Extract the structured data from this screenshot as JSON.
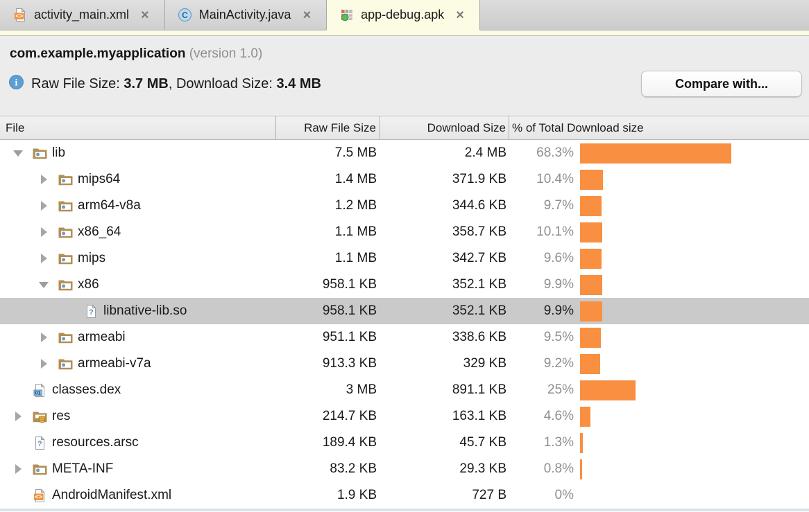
{
  "ui": {
    "close_glyph": "×"
  },
  "tabs": [
    {
      "label": "activity_main.xml",
      "icon": "xml-file-icon",
      "active": false
    },
    {
      "label": "MainActivity.java",
      "icon": "java-class-icon",
      "active": false
    },
    {
      "label": "app-debug.apk",
      "icon": "apk-icon",
      "active": true
    }
  ],
  "header": {
    "package_name": "com.example.myapplication",
    "version_label": "(version 1.0)",
    "info_prefix": "Raw File Size: ",
    "raw_size": "3.7 MB",
    "info_mid": ", Download Size: ",
    "download_size": "3.4 MB",
    "compare_button": "Compare with..."
  },
  "table": {
    "columns": [
      "File",
      "Raw File Size",
      "Download Size",
      "% of Total Download size"
    ],
    "bar_color": "#f98f40",
    "selected_row_color": "#cacaca",
    "rows": [
      {
        "name": "lib",
        "icon": "folder-icon",
        "indent": 0,
        "expander": "expanded",
        "raw": "7.5 MB",
        "download": "2.4 MB",
        "pct_label": "68.3%",
        "pct": 68.3,
        "selected": false
      },
      {
        "name": "mips64",
        "icon": "folder-icon",
        "indent": 1,
        "expander": "collapsed",
        "raw": "1.4 MB",
        "download": "371.9 KB",
        "pct_label": "10.4%",
        "pct": 10.4,
        "selected": false
      },
      {
        "name": "arm64-v8a",
        "icon": "folder-icon",
        "indent": 1,
        "expander": "collapsed",
        "raw": "1.2 MB",
        "download": "344.6 KB",
        "pct_label": "9.7%",
        "pct": 9.7,
        "selected": false
      },
      {
        "name": "x86_64",
        "icon": "folder-icon",
        "indent": 1,
        "expander": "collapsed",
        "raw": "1.1 MB",
        "download": "358.7 KB",
        "pct_label": "10.1%",
        "pct": 10.1,
        "selected": false
      },
      {
        "name": "mips",
        "icon": "folder-icon",
        "indent": 1,
        "expander": "collapsed",
        "raw": "1.1 MB",
        "download": "342.7 KB",
        "pct_label": "9.6%",
        "pct": 9.6,
        "selected": false
      },
      {
        "name": "x86",
        "icon": "folder-icon",
        "indent": 1,
        "expander": "expanded",
        "raw": "958.1 KB",
        "download": "352.1 KB",
        "pct_label": "9.9%",
        "pct": 9.9,
        "selected": false
      },
      {
        "name": "libnative-lib.so",
        "icon": "unknown-file-icon",
        "indent": 2,
        "expander": "none",
        "raw": "958.1 KB",
        "download": "352.1 KB",
        "pct_label": "9.9%",
        "pct": 9.9,
        "selected": true
      },
      {
        "name": "armeabi",
        "icon": "folder-icon",
        "indent": 1,
        "expander": "collapsed",
        "raw": "951.1 KB",
        "download": "338.6 KB",
        "pct_label": "9.5%",
        "pct": 9.5,
        "selected": false
      },
      {
        "name": "armeabi-v7a",
        "icon": "folder-icon",
        "indent": 1,
        "expander": "collapsed",
        "raw": "913.3 KB",
        "download": "329 KB",
        "pct_label": "9.2%",
        "pct": 9.2,
        "selected": false
      },
      {
        "name": "classes.dex",
        "icon": "dex-file-icon",
        "indent": 0,
        "expander": "none",
        "raw": "3 MB",
        "download": "891.1 KB",
        "pct_label": "25%",
        "pct": 25,
        "selected": false
      },
      {
        "name": "res",
        "icon": "res-folder-icon",
        "indent": 0,
        "expander": "collapsed",
        "raw": "214.7 KB",
        "download": "163.1 KB",
        "pct_label": "4.6%",
        "pct": 4.6,
        "selected": false
      },
      {
        "name": "resources.arsc",
        "icon": "unknown-file-icon",
        "indent": 0,
        "expander": "none",
        "raw": "189.4 KB",
        "download": "45.7 KB",
        "pct_label": "1.3%",
        "pct": 1.3,
        "selected": false
      },
      {
        "name": "META-INF",
        "icon": "folder-icon",
        "indent": 0,
        "expander": "collapsed",
        "raw": "83.2 KB",
        "download": "29.3 KB",
        "pct_label": "0.8%",
        "pct": 0.8,
        "selected": false
      },
      {
        "name": "AndroidManifest.xml",
        "icon": "xml-file-icon",
        "indent": 0,
        "expander": "none",
        "raw": "1.9 KB",
        "download": "727 B",
        "pct_label": "0%",
        "pct": 0,
        "selected": false
      }
    ]
  }
}
